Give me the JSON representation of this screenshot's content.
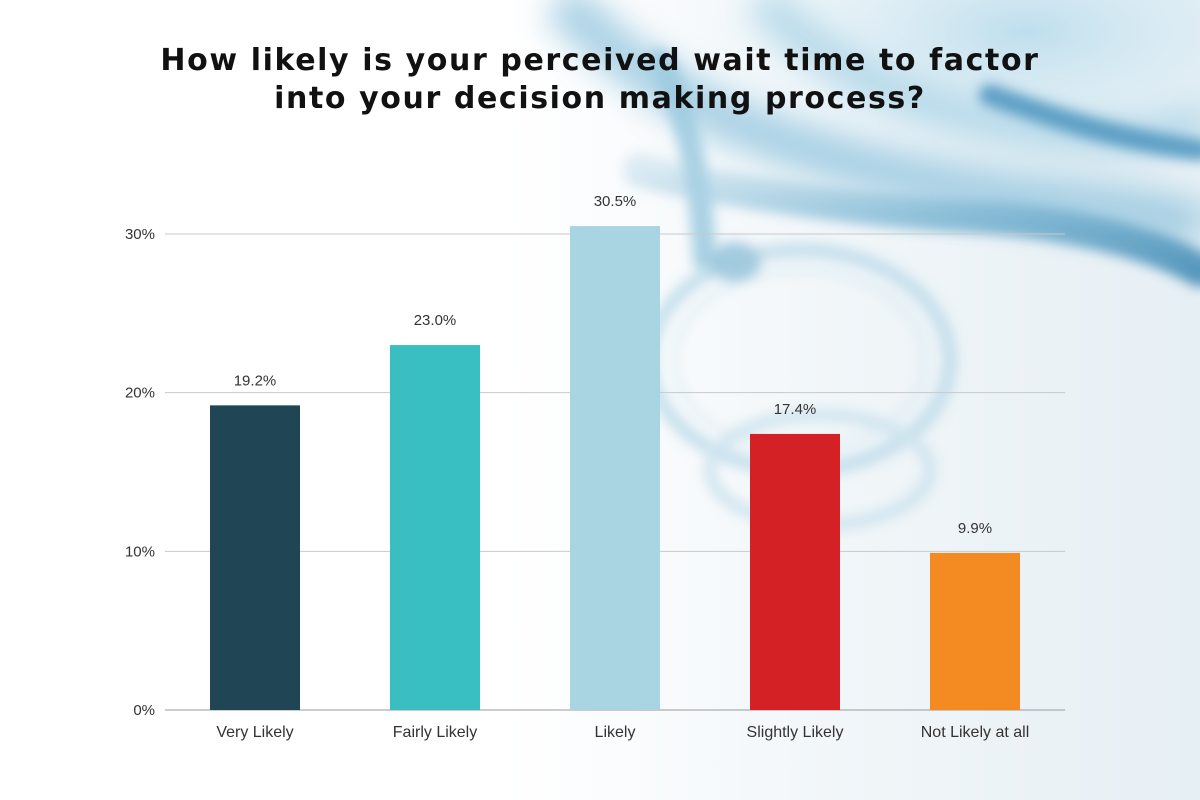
{
  "chart_data": {
    "type": "bar",
    "title_lines": [
      "How likely is your perceived wait time to factor",
      "into your decision making process?"
    ],
    "categories": [
      "Very Likely",
      "Fairly Likely",
      "Likely",
      "Slightly Likely",
      "Not Likely at all"
    ],
    "values": [
      19.2,
      23.0,
      30.5,
      17.4,
      9.9
    ],
    "value_labels": [
      "19.2%",
      "23.0%",
      "30.5%",
      "17.4%",
      "9.9%"
    ],
    "colors": [
      "#204656",
      "#39bfc1",
      "#a9d5e2",
      "#d42126",
      "#f48a22"
    ],
    "ylim": [
      0,
      30
    ],
    "yticks": [
      0,
      10,
      20,
      30
    ],
    "ytick_labels": [
      "0%",
      "10%",
      "20%",
      "30%"
    ],
    "xlabel": "",
    "ylabel": "",
    "grid": true,
    "legend": "none"
  }
}
